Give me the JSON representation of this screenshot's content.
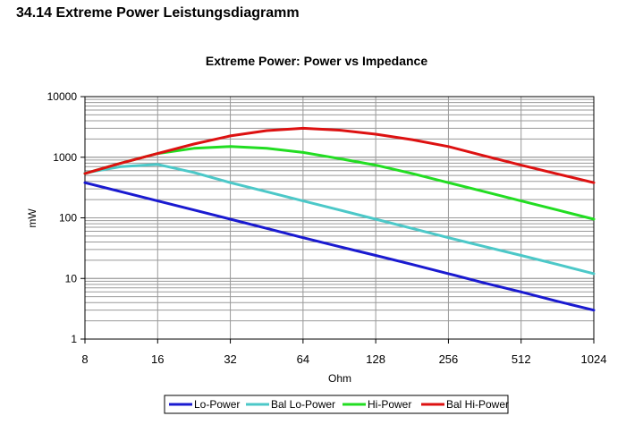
{
  "heading": "34.14 Extreme Power Leistungsdiagramm",
  "chart_data": {
    "type": "line",
    "title": "Extreme Power: Power vs Impedance",
    "xlabel": "Ohm",
    "ylabel": "mW",
    "xscale": "log2",
    "yscale": "log10",
    "xlim": [
      8,
      1024
    ],
    "ylim": [
      1,
      10000
    ],
    "x_ticks": [
      "8",
      "16",
      "32",
      "64",
      "128",
      "256",
      "512",
      "1024"
    ],
    "y_ticks": [
      "1",
      "10",
      "100",
      "1000",
      "10000"
    ],
    "grid": true,
    "legend_position": "bottom",
    "x": [
      8,
      11.3,
      16,
      22.6,
      32,
      45.3,
      64,
      90.5,
      128,
      181,
      256,
      362,
      512,
      724,
      1024
    ],
    "series": [
      {
        "name": "Lo-Power",
        "color": "#1a1ad0",
        "values": [
          380,
          270,
          190,
          135,
          95,
          67,
          47,
          33.5,
          24,
          17,
          12,
          8.4,
          6,
          4.2,
          3
        ]
      },
      {
        "name": "Bal Lo-Power",
        "color": "#4cc8c8",
        "values": [
          550,
          700,
          760,
          560,
          380,
          270,
          190,
          135,
          95,
          67,
          47,
          33.5,
          24,
          17,
          12
        ]
      },
      {
        "name": "Hi-Power",
        "color": "#22dd22",
        "values": [
          540,
          800,
          1150,
          1400,
          1500,
          1400,
          1200,
          950,
          740,
          540,
          380,
          270,
          190,
          135,
          95
        ]
      },
      {
        "name": "Bal Hi-Power",
        "color": "#dd1111",
        "values": [
          540,
          800,
          1150,
          1650,
          2250,
          2750,
          3000,
          2800,
          2400,
          1950,
          1500,
          1050,
          740,
          530,
          380
        ]
      }
    ]
  }
}
